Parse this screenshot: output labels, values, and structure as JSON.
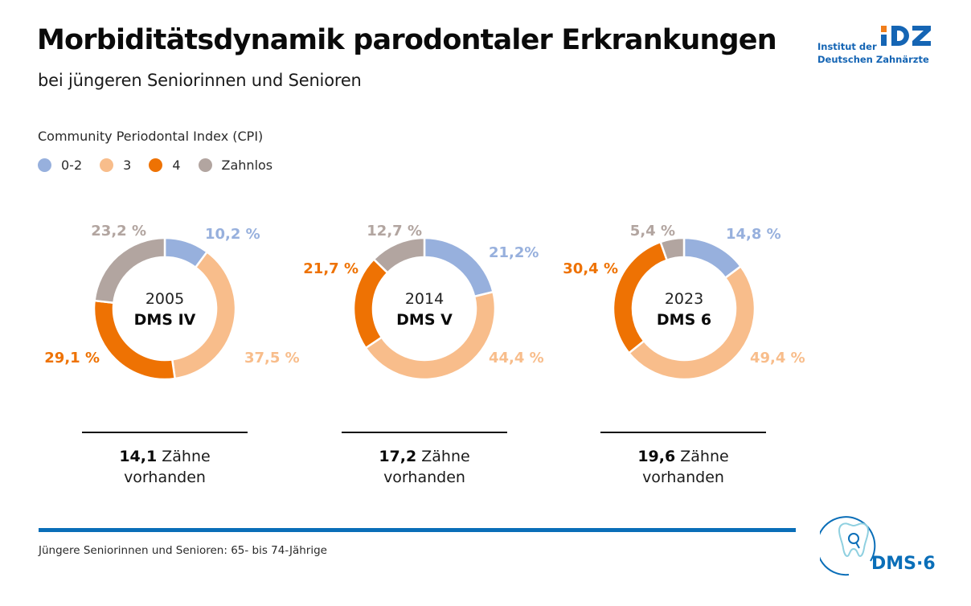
{
  "header": {
    "title": "Morbiditätsdynamik parodontaler Erkrankungen",
    "subtitle": "bei jüngeren Seniorinnen und Senioren"
  },
  "logo_idz": {
    "line1": "Institut der",
    "line2": "Deutschen Zahnärzte",
    "mark": "IDZ",
    "colors": {
      "blue": "#1565b4",
      "orange": "#f07d1a"
    }
  },
  "legend": {
    "title": "Community Periodontal Index (CPI)",
    "items": [
      {
        "label": "0-2",
        "color": "#97b0dd"
      },
      {
        "label": "3",
        "color": "#f8bd8b"
      },
      {
        "label": "4",
        "color": "#ee7203"
      },
      {
        "label": "Zahnlos",
        "color": "#b2a5a0"
      }
    ]
  },
  "chart_data": {
    "type": "pie",
    "variant": "donut",
    "title": "Morbiditätsdynamik parodontaler Erkrankungen",
    "subtitle": "bei jüngeren Seniorinnen und Senioren",
    "legend_title": "Community Periodontal Index (CPI)",
    "legend_position": "top-left",
    "categories": [
      "0-2",
      "3",
      "4",
      "Zahnlos"
    ],
    "colors": [
      "#97b0dd",
      "#f8bd8b",
      "#ee7203",
      "#b2a5a0"
    ],
    "charts": [
      {
        "year": "2005",
        "name": "DMS IV",
        "values": [
          10.2,
          37.5,
          29.1,
          23.2
        ],
        "labels": [
          "10,2 %",
          "37,5 %",
          "29,1 %",
          "23,2 %"
        ],
        "teeth_value": "14,1",
        "teeth_text": "Zähne",
        "teeth_text2": "vorhanden"
      },
      {
        "year": "2014",
        "name": "DMS V",
        "values": [
          21.2,
          44.4,
          21.7,
          12.7
        ],
        "labels": [
          "21,2%",
          "44,4 %",
          "21,7 %",
          "12,7 %"
        ],
        "teeth_value": "17,2",
        "teeth_text": "Zähne",
        "teeth_text2": "vorhanden"
      },
      {
        "year": "2023",
        "name": "DMS 6",
        "values": [
          14.8,
          49.4,
          30.4,
          5.4
        ],
        "labels": [
          "14,8 %",
          "49,4 %",
          "30,4 %",
          "5,4 %"
        ],
        "teeth_value": "19,6",
        "teeth_text": "Zähne",
        "teeth_text2": "vorhanden"
      }
    ]
  },
  "footer": {
    "note": "Jüngere Seniorinnen und Senioren: 65- bis 74-Jährige",
    "rule_color": "#0a6eb8"
  },
  "logo_dms": {
    "text": "DMS·6",
    "color": "#0a6eb8",
    "tooth_color": "#8fd0e0"
  }
}
